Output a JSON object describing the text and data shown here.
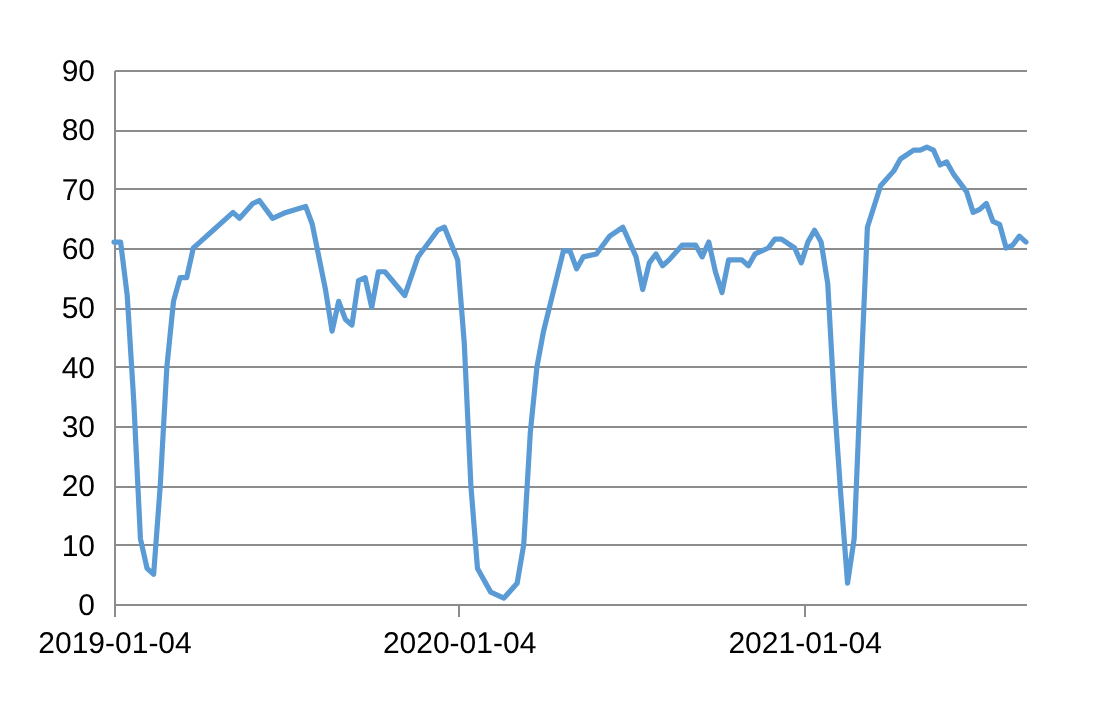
{
  "chart_data": {
    "type": "line",
    "x": [
      "2019-01-04",
      "2019-01-11",
      "2019-01-18",
      "2019-01-25",
      "2019-02-01",
      "2019-02-08",
      "2019-02-15",
      "2019-02-22",
      "2019-03-01",
      "2019-03-08",
      "2019-03-15",
      "2019-03-22",
      "2019-03-29",
      "2019-04-05",
      "2019-04-19",
      "2019-05-03",
      "2019-05-10",
      "2019-05-17",
      "2019-05-31",
      "2019-06-07",
      "2019-06-21",
      "2019-07-05",
      "2019-07-26",
      "2019-08-02",
      "2019-08-09",
      "2019-08-16",
      "2019-08-23",
      "2019-08-30",
      "2019-09-06",
      "2019-09-13",
      "2019-09-20",
      "2019-09-27",
      "2019-10-04",
      "2019-10-11",
      "2019-10-18",
      "2019-11-08",
      "2019-11-22",
      "2019-11-29",
      "2019-12-13",
      "2019-12-20",
      "2020-01-03",
      "2020-01-10",
      "2020-01-17",
      "2020-01-24",
      "2020-02-07",
      "2020-02-21",
      "2020-03-06",
      "2020-03-13",
      "2020-03-20",
      "2020-03-27",
      "2020-04-03",
      "2020-04-17",
      "2020-04-24",
      "2020-05-01",
      "2020-05-08",
      "2020-05-15",
      "2020-05-29",
      "2020-06-05",
      "2020-06-12",
      "2020-06-26",
      "2020-07-10",
      "2020-07-17",
      "2020-07-24",
      "2020-07-31",
      "2020-08-07",
      "2020-08-14",
      "2020-08-28",
      "2020-09-11",
      "2020-09-18",
      "2020-09-25",
      "2020-10-02",
      "2020-10-09",
      "2020-10-16",
      "2020-10-30",
      "2020-11-06",
      "2020-11-13",
      "2020-11-27",
      "2020-12-04",
      "2020-12-11",
      "2020-12-25",
      "2021-01-01",
      "2021-01-08",
      "2021-01-15",
      "2021-01-22",
      "2021-01-29",
      "2021-02-05",
      "2021-02-12",
      "2021-02-19",
      "2021-02-26",
      "2021-03-05",
      "2021-03-12",
      "2021-03-19",
      "2021-03-26",
      "2021-04-09",
      "2021-04-16",
      "2021-04-30",
      "2021-05-07",
      "2021-05-14",
      "2021-05-21",
      "2021-05-28",
      "2021-06-04",
      "2021-06-11",
      "2021-06-25",
      "2021-07-02",
      "2021-07-09",
      "2021-07-16",
      "2021-07-23",
      "2021-07-30",
      "2021-08-06",
      "2021-08-13",
      "2021-08-20",
      "2021-08-27"
    ],
    "series": [
      {
        "color": "#5b9bd5",
        "values": [
          61,
          61,
          52,
          34,
          11,
          6,
          5,
          20,
          40,
          51,
          55,
          55,
          60,
          61,
          63,
          65,
          66,
          65,
          67.5,
          68,
          65,
          66,
          67,
          64,
          58.5,
          53,
          46,
          51,
          48,
          47,
          54.5,
          55,
          50,
          56,
          56,
          52,
          58.5,
          60,
          63,
          63.5,
          58,
          44,
          20,
          6,
          2,
          1,
          3.5,
          10,
          29,
          40,
          46,
          55,
          59.5,
          59.5,
          56.5,
          58.5,
          59,
          60.5,
          62,
          63.5,
          58.5,
          53,
          57.5,
          59,
          57,
          58,
          60.5,
          60.5,
          58.5,
          61,
          56,
          52.5,
          58,
          58,
          57,
          59,
          60,
          61.5,
          61.5,
          60,
          57.5,
          61,
          63,
          61,
          54,
          34,
          18,
          3.5,
          11,
          38,
          63.5,
          67,
          70.5,
          73,
          75,
          76.5,
          76.5,
          77,
          76.5,
          74,
          74.5,
          72.5,
          69.5,
          66,
          66.5,
          67.5,
          64.5,
          64,
          60,
          60.5,
          62,
          61
        ]
      }
    ],
    "xlim": [
      "2019-01-04",
      "2021-08-27"
    ],
    "xticks": [
      "2019-01-04",
      "2020-01-04",
      "2021-01-04"
    ],
    "ylim": [
      0,
      90
    ],
    "yticks": [
      0,
      10,
      20,
      30,
      40,
      50,
      60,
      70,
      80,
      90
    ],
    "grid": "y",
    "line_style": "solid"
  }
}
